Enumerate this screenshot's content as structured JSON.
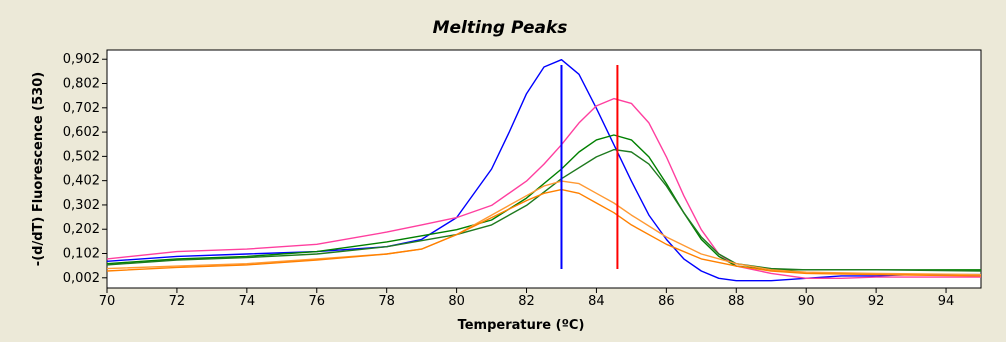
{
  "chart_data": {
    "type": "line",
    "title": "Melting Peaks",
    "xlabel": "Temperature (ºC)",
    "ylabel": "-(d/dT) Fluorescence (530)",
    "xlim": [
      70,
      95
    ],
    "ylim": [
      -0.04,
      0.94
    ],
    "x_ticks": [
      70,
      72,
      74,
      76,
      78,
      80,
      82,
      84,
      86,
      88,
      90,
      92,
      94
    ],
    "x_tick_labels": [
      "70",
      "72",
      "74",
      "76",
      "78",
      "80",
      "82",
      "84",
      "86",
      "88",
      "90",
      "92",
      "94"
    ],
    "y_ticks": [
      0.002,
      0.102,
      0.202,
      0.302,
      0.402,
      0.502,
      0.602,
      0.702,
      0.802,
      0.902
    ],
    "y_tick_labels": [
      "0,002",
      "0,102",
      "0,202",
      "0,302",
      "0,402",
      "0,502",
      "0,602",
      "0,702",
      "0,802",
      "0,902"
    ],
    "grid": false,
    "legend": "none",
    "series": [
      {
        "color": "#0000ff",
        "points": [
          [
            70,
            0.07
          ],
          [
            72,
            0.09
          ],
          [
            74,
            0.1
          ],
          [
            76,
            0.11
          ],
          [
            78,
            0.13
          ],
          [
            79,
            0.16
          ],
          [
            80,
            0.25
          ],
          [
            81,
            0.45
          ],
          [
            81.5,
            0.6
          ],
          [
            82,
            0.76
          ],
          [
            82.5,
            0.87
          ],
          [
            83,
            0.9
          ],
          [
            83.5,
            0.84
          ],
          [
            84,
            0.7
          ],
          [
            84.5,
            0.55
          ],
          [
            85,
            0.4
          ],
          [
            85.5,
            0.26
          ],
          [
            86,
            0.16
          ],
          [
            86.5,
            0.08
          ],
          [
            87,
            0.03
          ],
          [
            87.5,
            0.0
          ],
          [
            88,
            -0.01
          ],
          [
            89,
            -0.01
          ],
          [
            90,
            0.0
          ],
          [
            91,
            0.01
          ],
          [
            92,
            0.01
          ],
          [
            93,
            0.015
          ],
          [
            95,
            0.015
          ]
        ]
      },
      {
        "color": "#ff3f9f",
        "points": [
          [
            70,
            0.08
          ],
          [
            72,
            0.11
          ],
          [
            74,
            0.12
          ],
          [
            76,
            0.14
          ],
          [
            78,
            0.19
          ],
          [
            79,
            0.22
          ],
          [
            80,
            0.25
          ],
          [
            81,
            0.3
          ],
          [
            82,
            0.4
          ],
          [
            82.5,
            0.47
          ],
          [
            83,
            0.55
          ],
          [
            83.5,
            0.64
          ],
          [
            84,
            0.71
          ],
          [
            84.5,
            0.74
          ],
          [
            85,
            0.72
          ],
          [
            85.5,
            0.64
          ],
          [
            86,
            0.5
          ],
          [
            86.5,
            0.34
          ],
          [
            87,
            0.2
          ],
          [
            87.5,
            0.1
          ],
          [
            88,
            0.05
          ],
          [
            89,
            0.02
          ],
          [
            90,
            0.0
          ],
          [
            91,
            0.0
          ],
          [
            92,
            0.005
          ],
          [
            95,
            0.005
          ]
        ]
      },
      {
        "color": "#008000",
        "points": [
          [
            70,
            0.06
          ],
          [
            72,
            0.08
          ],
          [
            74,
            0.09
          ],
          [
            76,
            0.11
          ],
          [
            78,
            0.15
          ],
          [
            80,
            0.2
          ],
          [
            81,
            0.24
          ],
          [
            82,
            0.33
          ],
          [
            83,
            0.45
          ],
          [
            83.5,
            0.52
          ],
          [
            84,
            0.57
          ],
          [
            84.5,
            0.59
          ],
          [
            85,
            0.57
          ],
          [
            85.5,
            0.5
          ],
          [
            86,
            0.39
          ],
          [
            86.5,
            0.27
          ],
          [
            87,
            0.16
          ],
          [
            87.5,
            0.09
          ],
          [
            88,
            0.05
          ],
          [
            89,
            0.035
          ],
          [
            90,
            0.035
          ],
          [
            92,
            0.035
          ],
          [
            95,
            0.035
          ]
        ]
      },
      {
        "color": "#1f7a1f",
        "points": [
          [
            70,
            0.055
          ],
          [
            72,
            0.075
          ],
          [
            74,
            0.085
          ],
          [
            76,
            0.1
          ],
          [
            78,
            0.13
          ],
          [
            80,
            0.18
          ],
          [
            81,
            0.22
          ],
          [
            82,
            0.3
          ],
          [
            83,
            0.41
          ],
          [
            84,
            0.5
          ],
          [
            84.5,
            0.53
          ],
          [
            85,
            0.52
          ],
          [
            85.5,
            0.47
          ],
          [
            86,
            0.38
          ],
          [
            86.5,
            0.27
          ],
          [
            87,
            0.17
          ],
          [
            87.5,
            0.1
          ],
          [
            88,
            0.06
          ],
          [
            89,
            0.04
          ],
          [
            90,
            0.035
          ],
          [
            92,
            0.035
          ],
          [
            95,
            0.03
          ]
        ]
      },
      {
        "color": "#ff9933",
        "points": [
          [
            70,
            0.04
          ],
          [
            72,
            0.05
          ],
          [
            74,
            0.06
          ],
          [
            76,
            0.08
          ],
          [
            78,
            0.1
          ],
          [
            79,
            0.12
          ],
          [
            80,
            0.18
          ],
          [
            81,
            0.26
          ],
          [
            82,
            0.34
          ],
          [
            82.5,
            0.38
          ],
          [
            83,
            0.4
          ],
          [
            83.5,
            0.39
          ],
          [
            84,
            0.35
          ],
          [
            84.5,
            0.31
          ],
          [
            85,
            0.26
          ],
          [
            86,
            0.17
          ],
          [
            87,
            0.1
          ],
          [
            88,
            0.06
          ],
          [
            89,
            0.035
          ],
          [
            90,
            0.025
          ],
          [
            92,
            0.02
          ],
          [
            95,
            0.015
          ]
        ]
      },
      {
        "color": "#ff8000",
        "points": [
          [
            70,
            0.03
          ],
          [
            72,
            0.045
          ],
          [
            74,
            0.055
          ],
          [
            76,
            0.075
          ],
          [
            78,
            0.1
          ],
          [
            79,
            0.12
          ],
          [
            80,
            0.18
          ],
          [
            81,
            0.25
          ],
          [
            82,
            0.32
          ],
          [
            82.5,
            0.35
          ],
          [
            83,
            0.365
          ],
          [
            83.5,
            0.35
          ],
          [
            84,
            0.31
          ],
          [
            84.5,
            0.27
          ],
          [
            85,
            0.22
          ],
          [
            86,
            0.14
          ],
          [
            87,
            0.08
          ],
          [
            88,
            0.05
          ],
          [
            89,
            0.03
          ],
          [
            90,
            0.02
          ],
          [
            92,
            0.015
          ],
          [
            95,
            0.01
          ]
        ]
      }
    ],
    "markers": [
      {
        "x": 83.0,
        "color": "#0000ff"
      },
      {
        "x": 84.6,
        "color": "#ff0000"
      }
    ]
  }
}
